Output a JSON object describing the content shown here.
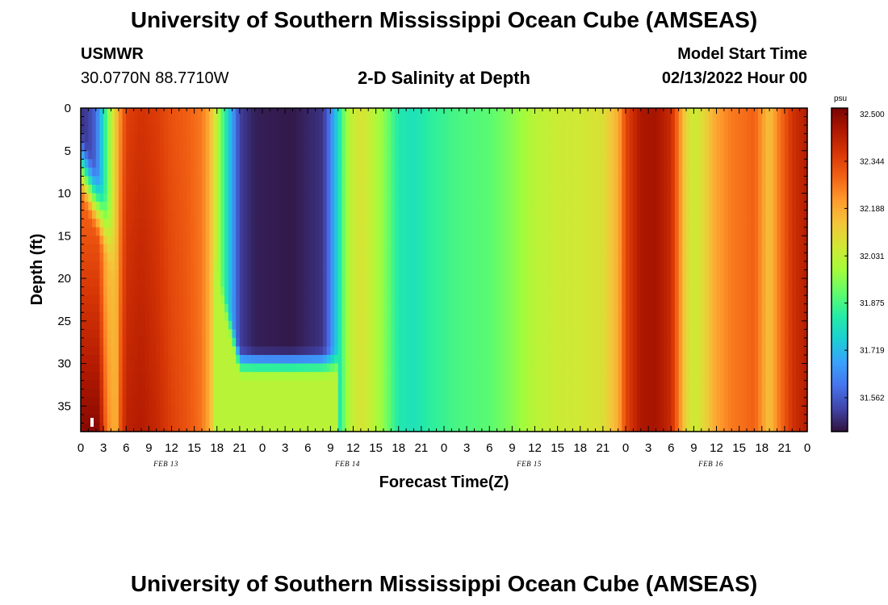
{
  "header": {
    "title": "University of Southern Mississippi Ocean Cube (AMSEAS)",
    "station": "USMWR",
    "coordinates": "30.0770N  88.7710W",
    "subtitle": "2-D Salinity at Depth",
    "start_label": "Model Start Time",
    "start_value": "02/13/2022 Hour 00"
  },
  "footer": {
    "title": "University of Southern Mississippi Ocean Cube (AMSEAS)"
  },
  "chart_data": {
    "type": "heatmap",
    "title": "2-D Salinity at Depth",
    "xlabel": "Forecast Time(Z)",
    "ylabel": "Depth (ft)",
    "colorbar_label": "psu",
    "x_range_hours": [
      0,
      96
    ],
    "y_range_ft": [
      0,
      38
    ],
    "y_inverted": true,
    "x_ticks": [
      "0",
      "3",
      "6",
      "9",
      "12",
      "15",
      "18",
      "21",
      "0",
      "3",
      "6",
      "9",
      "12",
      "15",
      "18",
      "21",
      "0",
      "3",
      "6",
      "9",
      "12",
      "15",
      "18",
      "21",
      "0",
      "3",
      "6",
      "9",
      "12",
      "15",
      "18",
      "21",
      "0"
    ],
    "y_ticks": [
      0,
      5,
      10,
      15,
      20,
      25,
      30,
      35
    ],
    "day_labels": [
      "FEB 13",
      "FEB 14",
      "FEB 15",
      "FEB 16"
    ],
    "colorbar_ticks": [
      "32.500",
      "32.344",
      "32.188",
      "32.031",
      "31.875",
      "31.719",
      "31.562"
    ],
    "color_range": [
      31.45,
      32.52
    ],
    "colormap": [
      "#30123b",
      "#4145ab",
      "#4675ed",
      "#39a2fc",
      "#1bcfd4",
      "#24eca6",
      "#61fc6c",
      "#a4fc3b",
      "#d1e834",
      "#f3c63a",
      "#fe9b2d",
      "#f36315",
      "#d93806",
      "#b11901",
      "#7a0402"
    ],
    "surface_salinity_psu": [
      [
        0,
        31.5
      ],
      [
        1,
        31.52
      ],
      [
        2,
        31.58
      ],
      [
        3,
        31.8
      ],
      [
        4,
        32.02
      ],
      [
        5,
        32.2
      ],
      [
        6,
        32.35
      ],
      [
        8,
        32.38
      ],
      [
        10,
        32.36
      ],
      [
        12,
        32.32
      ],
      [
        14,
        32.3
      ],
      [
        16,
        32.26
      ],
      [
        17,
        32.18
      ],
      [
        18,
        32.02
      ],
      [
        19,
        31.85
      ],
      [
        20,
        31.68
      ],
      [
        21,
        31.52
      ],
      [
        23,
        31.47
      ],
      [
        28,
        31.46
      ],
      [
        32,
        31.5
      ],
      [
        33,
        31.62
      ],
      [
        34,
        31.78
      ],
      [
        35,
        31.96
      ],
      [
        36,
        32.05
      ],
      [
        37,
        32.07
      ],
      [
        38,
        32.05
      ],
      [
        40,
        31.96
      ],
      [
        42,
        31.82
      ],
      [
        44,
        31.8
      ],
      [
        46,
        31.84
      ],
      [
        48,
        31.86
      ],
      [
        50,
        31.88
      ],
      [
        54,
        31.9
      ],
      [
        57,
        31.95
      ],
      [
        60,
        32.02
      ],
      [
        63,
        32.05
      ],
      [
        66,
        32.06
      ],
      [
        69,
        32.08
      ],
      [
        71,
        32.18
      ],
      [
        72,
        32.34
      ],
      [
        74,
        32.45
      ],
      [
        76,
        32.46
      ],
      [
        78,
        32.4
      ],
      [
        79,
        32.26
      ],
      [
        80,
        32.1
      ],
      [
        81,
        32.05
      ],
      [
        82,
        32.08
      ],
      [
        84,
        32.2
      ],
      [
        86,
        32.26
      ],
      [
        88,
        32.28
      ],
      [
        89,
        32.3
      ],
      [
        90,
        32.22
      ],
      [
        91,
        32.14
      ],
      [
        92,
        32.24
      ],
      [
        94,
        32.38
      ],
      [
        96,
        32.44
      ]
    ],
    "features": [
      "Fresher water near the surface at hours 0-3 deepens to about 15 ft; salinity increases with depth below, reaching about 32.5 psu near 35 ft.",
      "A fresh lens (about 31.46 psu) spans roughly hours 20-32 from the surface down to about 30 ft; beneath it salinity is about 32.0 psu."
    ]
  }
}
